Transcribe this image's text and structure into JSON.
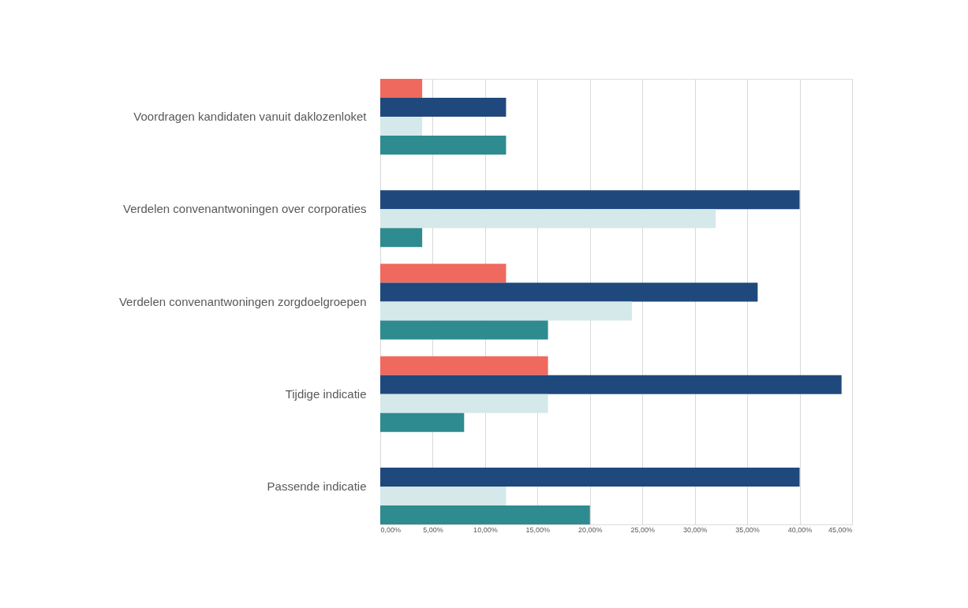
{
  "chart_data": {
    "type": "bar",
    "orientation": "horizontal",
    "categories": [
      "Voordragen kandidaten vanuit daklozenloket",
      "Verdelen convenantwoningen over corporaties",
      "Verdelen convenantwoningen zorgdoelgroepen",
      "Tijdige indicatie",
      "Passende indicatie"
    ],
    "series": [
      {
        "color": "#f0695f",
        "values": [
          4,
          null,
          12,
          16,
          null
        ]
      },
      {
        "color": "#1f497d",
        "values": [
          12,
          40,
          36,
          44,
          40
        ]
      },
      {
        "color": "#d5e8ea",
        "values": [
          4,
          32,
          24,
          16,
          12
        ]
      },
      {
        "color": "#2e8b8f",
        "values": [
          12,
          4,
          16,
          8,
          20
        ]
      }
    ],
    "xlim": [
      0,
      45
    ],
    "xticks": [
      {
        "value": 0,
        "label": "0,00%"
      },
      {
        "value": 5,
        "label": "5,00%"
      },
      {
        "value": 10,
        "label": "10,00%"
      },
      {
        "value": 15,
        "label": "15,00%"
      },
      {
        "value": 20,
        "label": "20,00%"
      },
      {
        "value": 25,
        "label": "25,00%"
      },
      {
        "value": 30,
        "label": "30,00%"
      },
      {
        "value": 35,
        "label": "35,00%"
      },
      {
        "value": 40,
        "label": "40,00%"
      },
      {
        "value": 45,
        "label": "45,00%"
      }
    ],
    "grid": "x",
    "legend": false
  }
}
